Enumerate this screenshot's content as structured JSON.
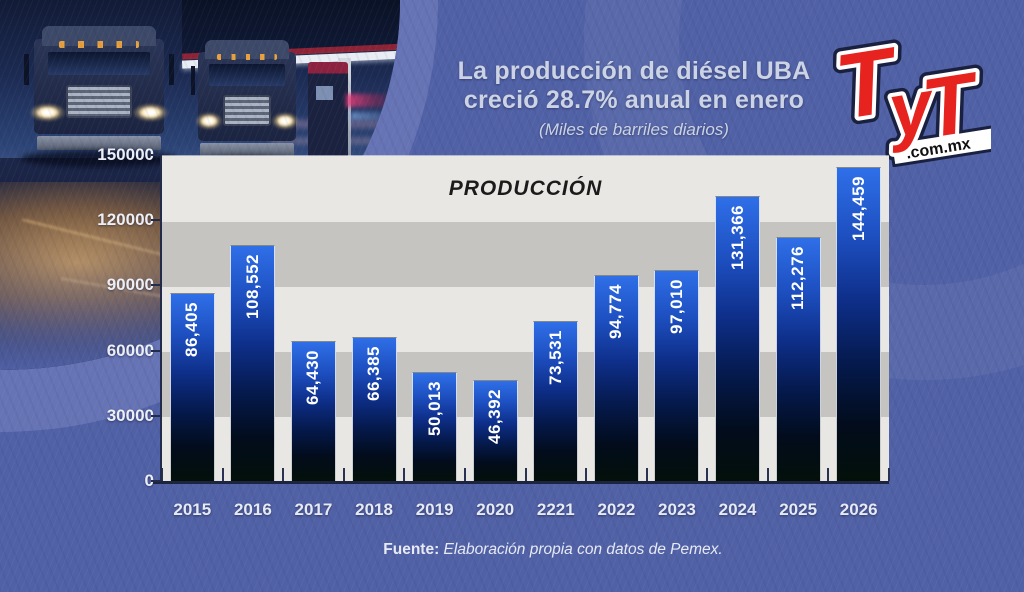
{
  "header": {
    "title_line1": "La producción de diésel UBA",
    "title_line2": "creció 28.7% anual en enero",
    "subtitle": "(Miles de barriles diarios)"
  },
  "logo": {
    "t1": "T",
    "y": "y",
    "t2": "T",
    "domain": ".com.mx",
    "red": "#e6231e"
  },
  "chart_data": {
    "type": "bar",
    "title": "PRODUCCIÓN",
    "categories": [
      "2015",
      "2016",
      "2017",
      "2018",
      "2019",
      "2020",
      "2221",
      "2022",
      "2023",
      "2024",
      "2025",
      "2026"
    ],
    "values": [
      86405,
      108552,
      64430,
      66385,
      50013,
      46392,
      73531,
      94774,
      97010,
      131366,
      112276,
      144459
    ],
    "value_labels": [
      "86,405",
      "108,552",
      "64,430",
      "66,385",
      "50,013",
      "46,392",
      "73,531",
      "94,774",
      "97,010",
      "131,366",
      "112,276",
      "144,459"
    ],
    "y_ticks": [
      "150000",
      "120000",
      "90000",
      "60000",
      "30000",
      "0"
    ],
    "ylim": [
      0,
      150000
    ],
    "xlabel": "",
    "ylabel": "",
    "legend": "none",
    "grid": "banded-background",
    "band_colors": [
      "#e9e7e3",
      "#c6c4c1"
    ],
    "bar_color_top": "#2f6fe8",
    "bar_color_bottom": "#03100a",
    "label_color": "#ffffff"
  },
  "footer": {
    "source_label": "Fuente:",
    "source_text": " Elaboración propia con datos de Pemex."
  },
  "colors": {
    "background": "#5161a6",
    "halo": "#6673b4",
    "axis": "#232b4a",
    "title_text": "#ccd3e4",
    "logo_red": "#e6231e"
  }
}
